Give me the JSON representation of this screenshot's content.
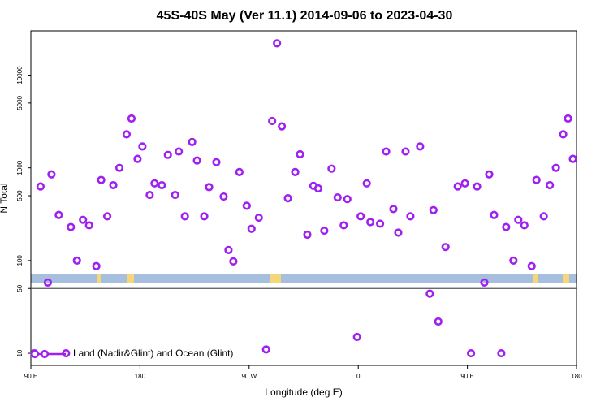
{
  "chart_data": {
    "type": "scatter",
    "title": "45S-40S May (Ver 11.1)   2014-09-06 to 2023-04-30",
    "xlabel": "Longitude (deg E)",
    "ylabel": "N Total",
    "log_y": true,
    "legend": "bottom-left",
    "reference_line": 50,
    "x": [
      93,
      98,
      104,
      107,
      113,
      119,
      123,
      128,
      133,
      138,
      144,
      148,
      153,
      158,
      163,
      169,
      173,
      178,
      182,
      188,
      192,
      198,
      203,
      209,
      212,
      217,
      223,
      227,
      233,
      237,
      243,
      249,
      253,
      257,
      262,
      268,
      272,
      278,
      284,
      289,
      293,
      297,
      302,
      308,
      312,
      318,
      323,
      327,
      332,
      338,
      343,
      348,
      351,
      359,
      362,
      367,
      370,
      378,
      383,
      389,
      393,
      399,
      403,
      411,
      419,
      422,
      426,
      432,
      442,
      448,
      453,
      458,
      464,
      468,
      472,
      478,
      482,
      488,
      492,
      497,
      503,
      507,
      513,
      518,
      523,
      529,
      533,
      537
    ],
    "series": [
      {
        "name": "Land (Nadir&Glint) and Ocean (Glint)",
        "color": "#a020f0",
        "values": [
          10,
          630,
          58,
          850,
          310,
          10,
          230,
          100,
          275,
          240,
          87,
          740,
          300,
          650,
          1000,
          2300,
          3400,
          1250,
          1700,
          510,
          680,
          650,
          1380,
          510,
          1500,
          300,
          1900,
          1200,
          300,
          620,
          1150,
          490,
          130,
          98,
          900,
          390,
          220,
          290,
          11,
          3200,
          22000,
          2800,
          470,
          900,
          1400,
          190,
          640,
          600,
          210,
          980,
          480,
          240,
          460,
          15,
          300,
          680,
          260,
          250,
          1500,
          360,
          200,
          1500,
          300,
          1700,
          44,
          350,
          22,
          140,
          630,
          680,
          10,
          630,
          58,
          850,
          310,
          10,
          230,
          100,
          275,
          240,
          87,
          740,
          300,
          650,
          1000,
          2300,
          3400,
          1250
        ]
      }
    ],
    "xlim": [
      90,
      540
    ],
    "xticks": [
      {
        "value": 90,
        "label": "90 E"
      },
      180,
      {
        "value": 270,
        "label": "90 W"
      },
      {
        "value": 360,
        "label": "0"
      },
      {
        "value": 450,
        "label": "90 E"
      },
      {
        "value": 540,
        "label": "180"
      }
    ],
    "ylim": [
      7.4,
      30000
    ],
    "yticks": [
      10,
      50,
      100,
      500,
      1000,
      5000,
      10000
    ]
  }
}
